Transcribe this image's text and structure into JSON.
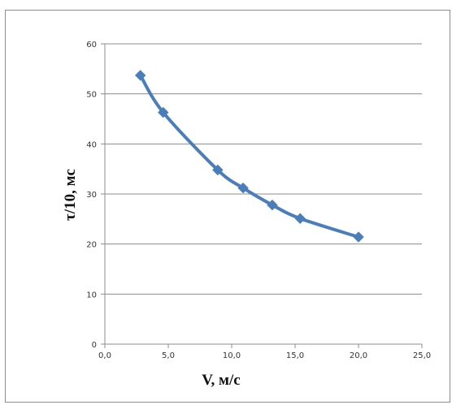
{
  "chart_data": {
    "type": "line",
    "title": "",
    "xlabel": "V, м/с",
    "ylabel": "τ/10, мс",
    "xlim": [
      0,
      25
    ],
    "ylim": [
      0,
      60
    ],
    "x_ticks": [
      0,
      5,
      10,
      15,
      20,
      25
    ],
    "x_tick_labels": [
      "0,0",
      "5,0",
      "10,0",
      "15,0",
      "20,0",
      "25,0"
    ],
    "y_ticks": [
      0,
      10,
      20,
      30,
      40,
      50,
      60
    ],
    "y_tick_labels": [
      "0",
      "10",
      "20",
      "30",
      "40",
      "50",
      "60"
    ],
    "grid": "horizontal",
    "legend": "none",
    "series": [
      {
        "color": "#4a7ebb",
        "marker": "diamond",
        "x": [
          2.8,
          4.6,
          8.9,
          10.9,
          13.2,
          15.4,
          20.0
        ],
        "y": [
          53.7,
          46.3,
          34.8,
          31.2,
          27.8,
          25.1,
          21.4
        ]
      }
    ]
  }
}
